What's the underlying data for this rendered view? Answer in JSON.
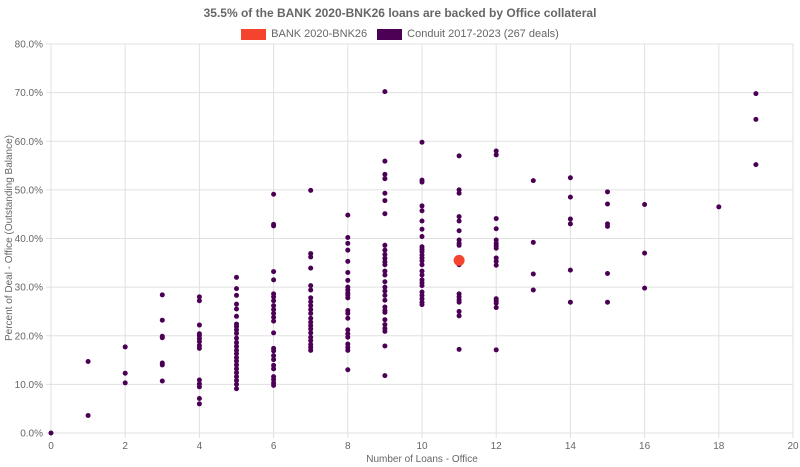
{
  "chart_data": {
    "type": "scatter",
    "title": "35.5% of the BANK 2020-BNK26 loans are backed by Office collateral",
    "xlabel": "Number of Loans - Office",
    "ylabel": "Percent of Deal - Office (Outstanding Balance)",
    "xlim": [
      0,
      20
    ],
    "ylim": [
      0,
      80
    ],
    "x_ticks": [
      0,
      2,
      4,
      6,
      8,
      10,
      12,
      14,
      16,
      18,
      20
    ],
    "y_ticks": [
      0,
      10,
      20,
      30,
      40,
      50,
      60,
      70,
      80
    ],
    "y_tick_labels": [
      "0.0%",
      "10.0%",
      "20.0%",
      "30.0%",
      "40.0%",
      "50.0%",
      "60.0%",
      "70.0%",
      "80.0%"
    ],
    "grid": true,
    "legend_position": "top-center",
    "series": [
      {
        "name": "BANK 2020-BNK26",
        "color": "#f4442e",
        "points": [
          [
            11,
            35.5
          ]
        ]
      },
      {
        "name": "Conduit 2017-2023 (267 deals)",
        "color": "#4b0055",
        "points": [
          [
            0,
            0.0
          ],
          [
            1,
            14.7
          ],
          [
            1,
            3.6
          ],
          [
            2,
            17.7
          ],
          [
            2,
            12.3
          ],
          [
            2,
            10.3
          ],
          [
            3,
            28.4
          ],
          [
            3,
            23.2
          ],
          [
            3,
            19.9
          ],
          [
            3,
            19.6
          ],
          [
            3,
            14.4
          ],
          [
            3,
            14.0
          ],
          [
            3,
            10.7
          ],
          [
            4,
            28.0
          ],
          [
            4,
            27.2
          ],
          [
            4,
            22.2
          ],
          [
            4,
            20.4
          ],
          [
            4,
            20.0
          ],
          [
            4,
            19.4
          ],
          [
            4,
            18.8
          ],
          [
            4,
            18.0
          ],
          [
            4,
            17.4
          ],
          [
            4,
            10.9
          ],
          [
            4,
            10.1
          ],
          [
            4,
            9.5
          ],
          [
            4,
            7.1
          ],
          [
            4,
            6.0
          ],
          [
            5,
            32.0
          ],
          [
            5,
            29.7
          ],
          [
            5,
            28.3
          ],
          [
            5,
            26.5
          ],
          [
            5,
            25.5
          ],
          [
            5,
            24.0
          ],
          [
            5,
            22.4
          ],
          [
            5,
            21.9
          ],
          [
            5,
            21.2
          ],
          [
            5,
            20.5
          ],
          [
            5,
            19.5
          ],
          [
            5,
            18.6
          ],
          [
            5,
            17.8
          ],
          [
            5,
            17.0
          ],
          [
            5,
            16.3
          ],
          [
            5,
            15.5
          ],
          [
            5,
            14.8
          ],
          [
            5,
            14.0
          ],
          [
            5,
            13.2
          ],
          [
            5,
            12.4
          ],
          [
            5,
            11.6
          ],
          [
            5,
            10.8
          ],
          [
            5,
            10.0
          ],
          [
            5,
            9.1
          ],
          [
            6,
            49.1
          ],
          [
            6,
            42.9
          ],
          [
            6,
            42.6
          ],
          [
            6,
            33.2
          ],
          [
            6,
            31.5
          ],
          [
            6,
            28.6
          ],
          [
            6,
            28.0
          ],
          [
            6,
            27.2
          ],
          [
            6,
            26.2
          ],
          [
            6,
            25.4
          ],
          [
            6,
            24.6
          ],
          [
            6,
            23.8
          ],
          [
            6,
            23.0
          ],
          [
            6,
            20.6
          ],
          [
            6,
            17.4
          ],
          [
            6,
            16.9
          ],
          [
            6,
            15.9
          ],
          [
            6,
            15.1
          ],
          [
            6,
            13.9
          ],
          [
            6,
            13.2
          ],
          [
            6,
            11.6
          ],
          [
            6,
            11.0
          ],
          [
            6,
            10.3
          ],
          [
            6,
            9.8
          ],
          [
            7,
            49.9
          ],
          [
            7,
            36.9
          ],
          [
            7,
            36.2
          ],
          [
            7,
            33.9
          ],
          [
            7,
            30.3
          ],
          [
            7,
            29.4
          ],
          [
            7,
            27.8
          ],
          [
            7,
            27.0
          ],
          [
            7,
            26.2
          ],
          [
            7,
            25.4
          ],
          [
            7,
            24.6
          ],
          [
            7,
            23.6
          ],
          [
            7,
            22.8
          ],
          [
            7,
            22.1
          ],
          [
            7,
            21.4
          ],
          [
            7,
            20.6
          ],
          [
            7,
            19.7
          ],
          [
            7,
            19.0
          ],
          [
            7,
            18.2
          ],
          [
            7,
            17.6
          ],
          [
            7,
            17.0
          ],
          [
            8,
            44.8
          ],
          [
            8,
            40.2
          ],
          [
            8,
            39.0
          ],
          [
            8,
            37.6
          ],
          [
            8,
            35.3
          ],
          [
            8,
            33.0
          ],
          [
            8,
            31.4
          ],
          [
            8,
            30.0
          ],
          [
            8,
            29.4
          ],
          [
            8,
            28.8
          ],
          [
            8,
            28.4
          ],
          [
            8,
            27.8
          ],
          [
            8,
            25.2
          ],
          [
            8,
            24.6
          ],
          [
            8,
            23.6
          ],
          [
            8,
            21.2
          ],
          [
            8,
            20.4
          ],
          [
            8,
            19.7
          ],
          [
            8,
            18.3
          ],
          [
            8,
            17.6
          ],
          [
            8,
            17.0
          ],
          [
            8,
            13.0
          ],
          [
            9,
            70.2
          ],
          [
            9,
            55.9
          ],
          [
            9,
            53.2
          ],
          [
            9,
            52.3
          ],
          [
            9,
            49.3
          ],
          [
            9,
            47.8
          ],
          [
            9,
            45.1
          ],
          [
            9,
            38.6
          ],
          [
            9,
            37.6
          ],
          [
            9,
            36.7
          ],
          [
            9,
            35.9
          ],
          [
            9,
            35.2
          ],
          [
            9,
            34.6
          ],
          [
            9,
            33.3
          ],
          [
            9,
            32.5
          ],
          [
            9,
            31.1
          ],
          [
            9,
            30.0
          ],
          [
            9,
            29.2
          ],
          [
            9,
            28.3
          ],
          [
            9,
            27.3
          ],
          [
            9,
            25.9
          ],
          [
            9,
            25.2
          ],
          [
            9,
            24.8
          ],
          [
            9,
            23.3
          ],
          [
            9,
            22.3
          ],
          [
            9,
            21.5
          ],
          [
            9,
            20.9
          ],
          [
            9,
            17.9
          ],
          [
            9,
            11.8
          ],
          [
            10,
            59.8
          ],
          [
            10,
            52.0
          ],
          [
            10,
            51.6
          ],
          [
            10,
            46.7
          ],
          [
            10,
            45.7
          ],
          [
            10,
            43.6
          ],
          [
            10,
            41.9
          ],
          [
            10,
            40.4
          ],
          [
            10,
            38.3
          ],
          [
            10,
            37.8
          ],
          [
            10,
            37.3
          ],
          [
            10,
            36.6
          ],
          [
            10,
            36.0
          ],
          [
            10,
            35.4
          ],
          [
            10,
            34.6
          ],
          [
            10,
            33.3
          ],
          [
            10,
            32.5
          ],
          [
            10,
            31.5
          ],
          [
            10,
            30.9
          ],
          [
            10,
            30.3
          ],
          [
            10,
            29.0
          ],
          [
            10,
            28.3
          ],
          [
            10,
            27.6
          ],
          [
            10,
            26.9
          ],
          [
            10,
            26.4
          ],
          [
            11,
            57.0
          ],
          [
            11,
            50.0
          ],
          [
            11,
            49.3
          ],
          [
            11,
            44.5
          ],
          [
            11,
            43.6
          ],
          [
            11,
            41.6
          ],
          [
            11,
            39.7
          ],
          [
            11,
            39.0
          ],
          [
            11,
            38.6
          ],
          [
            11,
            35.6
          ],
          [
            11,
            34.6
          ],
          [
            11,
            28.6
          ],
          [
            11,
            28.0
          ],
          [
            11,
            27.4
          ],
          [
            11,
            26.9
          ],
          [
            11,
            25.0
          ],
          [
            11,
            24.1
          ],
          [
            11,
            17.2
          ],
          [
            12,
            58.0
          ],
          [
            12,
            57.2
          ],
          [
            12,
            44.1
          ],
          [
            12,
            42.0
          ],
          [
            12,
            39.7
          ],
          [
            12,
            39.0
          ],
          [
            12,
            38.5
          ],
          [
            12,
            38.0
          ],
          [
            12,
            36.0
          ],
          [
            12,
            35.3
          ],
          [
            12,
            34.5
          ],
          [
            12,
            27.6
          ],
          [
            12,
            27.2
          ],
          [
            12,
            26.7
          ],
          [
            12,
            25.8
          ],
          [
            12,
            17.1
          ],
          [
            13,
            51.9
          ],
          [
            13,
            39.2
          ],
          [
            13,
            32.7
          ],
          [
            13,
            29.4
          ],
          [
            14,
            52.5
          ],
          [
            14,
            48.5
          ],
          [
            14,
            44.0
          ],
          [
            14,
            43.0
          ],
          [
            14,
            33.5
          ],
          [
            14,
            26.9
          ],
          [
            15,
            49.6
          ],
          [
            15,
            47.1
          ],
          [
            15,
            43.0
          ],
          [
            15,
            42.5
          ],
          [
            15,
            32.8
          ],
          [
            15,
            26.9
          ],
          [
            16,
            47.0
          ],
          [
            16,
            37.0
          ],
          [
            16,
            29.8
          ],
          [
            18,
            46.5
          ],
          [
            19,
            69.8
          ],
          [
            19,
            64.5
          ],
          [
            19,
            55.2
          ]
        ]
      }
    ]
  }
}
